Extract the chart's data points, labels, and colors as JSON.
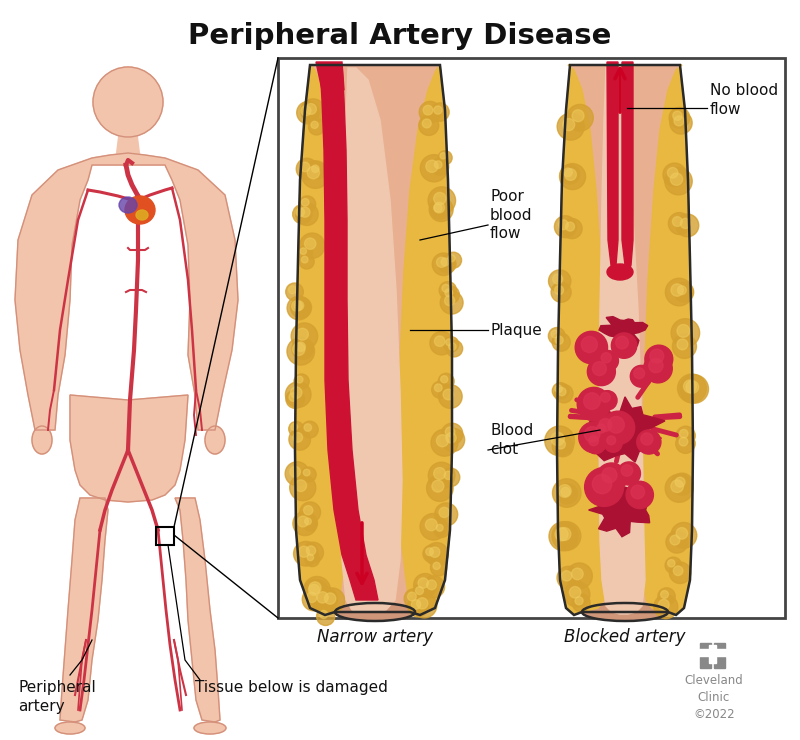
{
  "title": "Peripheral Artery Disease",
  "title_fontsize": 21,
  "title_fontweight": "bold",
  "bg_color": "#ffffff",
  "body_skin_color": "#f2c4ac",
  "body_outline_color": "#d4907a",
  "body_artery_color": "#cc3344",
  "wall_outer_color": "#e8b090",
  "wall_inner_color": "#e0a888",
  "wall_bottom_color": "#c89878",
  "plaque_base_color": "#e8b840",
  "plaque_bump_color": "#d4a030",
  "plaque_light_color": "#f0cc60",
  "lumen_color": "#f0c8b0",
  "blood_color": "#cc1133",
  "blood_dark_color": "#aa0022",
  "clot_color": "#aa1133",
  "clot_mid_color": "#cc2244",
  "clot_light_color": "#dd3355",
  "narrow_label": "Narrow artery",
  "blocked_label": "Blocked artery",
  "label_no_blood_flow": "No blood\nflow",
  "label_poor_blood_flow": "Poor\nblood\nflow",
  "label_plaque": "Plaque",
  "label_blood_clot": "Blood\nclot",
  "label_peripheral_artery": "Peripheral\nartery",
  "label_tissue_damaged": "Tissue below is damaged",
  "cleveland_text": "Cleveland\nClinic\n©2022",
  "arrow_color": "#cc0022",
  "box_border_color": "#444444",
  "text_color": "#111111",
  "label_fontsize": 11,
  "italic_fontsize": 12,
  "gray_logo": "#888888"
}
